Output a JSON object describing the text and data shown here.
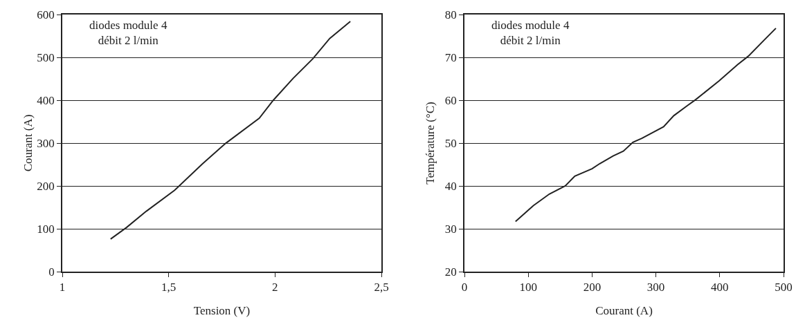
{
  "chart_data": [
    {
      "type": "line",
      "xlabel": "Tension (V)",
      "ylabel": "Courant (A)",
      "annotations": [
        "diodes module 4\ndébit 2 l/min"
      ],
      "x": [
        1.227,
        1.302,
        1.395,
        1.528,
        1.66,
        1.767,
        1.926,
        1.992,
        2.085,
        2.178,
        2.257,
        2.354
      ],
      "series": [
        {
          "color": "#222222",
          "values": [
            76,
            103,
            141,
            190,
            252,
            299,
            358,
            400,
            451,
            497,
            544,
            584
          ]
        }
      ],
      "xlim": [
        1,
        2.5
      ],
      "xticks": [
        1,
        {
          "value": 1.5,
          "label": "1,5"
        },
        2,
        {
          "value": 2.5,
          "label": "2,5"
        }
      ],
      "ylim": [
        0,
        600
      ],
      "yticks": [
        0,
        100,
        200,
        300,
        400,
        500,
        600
      ],
      "grid": "y",
      "line_style": "solid"
    },
    {
      "type": "line",
      "xlabel": "Courant (A)",
      "ylabel": "Température (°C)",
      "annotations": [
        "diodes module 4\ndébit 2 l/min"
      ],
      "x": [
        80,
        108,
        133,
        158,
        173,
        200,
        212,
        233,
        249,
        264,
        278,
        312,
        328,
        349,
        362,
        399,
        428,
        445,
        470,
        488
      ],
      "series": [
        {
          "color": "#222222",
          "values": [
            31.7,
            35.4,
            38.1,
            40,
            42.3,
            44,
            45.2,
            47,
            48.1,
            50.2,
            51.1,
            53.8,
            56.4,
            58.7,
            60.1,
            64.5,
            68.3,
            70.3,
            74.1,
            76.8
          ]
        }
      ],
      "xlim": [
        0,
        500
      ],
      "xticks": [
        0,
        100,
        200,
        300,
        400,
        500
      ],
      "ylim": [
        20,
        80
      ],
      "yticks": [
        20,
        30,
        40,
        50,
        60,
        70,
        80
      ],
      "grid": "y",
      "line_style": "solid"
    }
  ]
}
